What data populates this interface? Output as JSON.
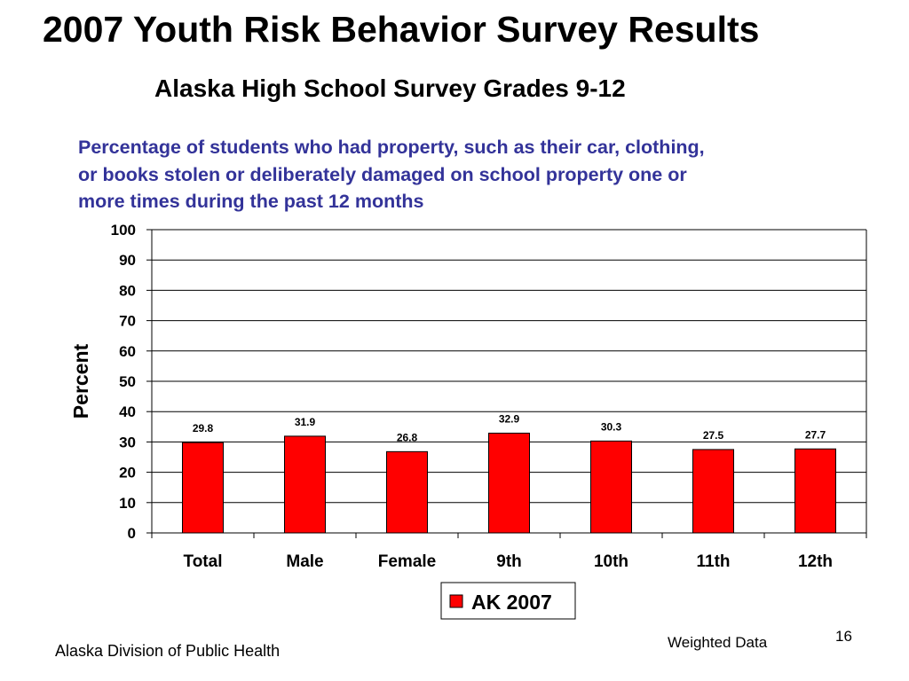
{
  "slide": {
    "title": "2007 Youth Risk Behavior Survey Results",
    "subtitle": "Alaska High School Survey Grades 9-12",
    "question_lines": [
      "Percentage of students who had property, such as their car, clothing,",
      "or books stolen or deliberately damaged on school property one or",
      "more times during the past 12 months"
    ],
    "footer_left": "Alaska Division of Public Health",
    "footer_note": "Weighted Data",
    "page_number": "16"
  },
  "colors": {
    "bar_fill": "#ff0000",
    "bar_stroke": "#000000",
    "question_text": "#333399",
    "gridline": "#000000"
  },
  "chart_data": {
    "type": "bar",
    "categories": [
      "Total",
      "Male",
      "Female",
      "9th",
      "10th",
      "11th",
      "12th"
    ],
    "series": [
      {
        "name": "AK 2007",
        "values": [
          29.8,
          31.9,
          26.8,
          32.9,
          30.3,
          27.5,
          27.7
        ]
      }
    ],
    "data_labels": [
      "29.8",
      "31.9",
      "26.8",
      "32.9",
      "30.3",
      "27.5",
      "27.7"
    ],
    "ylabel": "Percent",
    "xlabel": "",
    "ylim": [
      0,
      100
    ],
    "yticks": [
      0,
      10,
      20,
      30,
      40,
      50,
      60,
      70,
      80,
      90,
      100
    ],
    "grid": true,
    "legend": "bottom-center"
  }
}
